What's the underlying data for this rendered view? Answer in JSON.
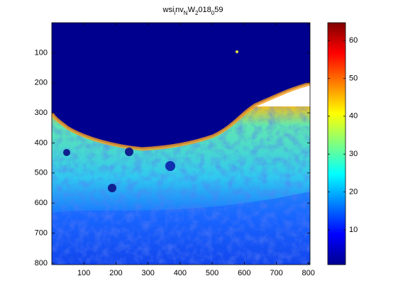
{
  "chart_data": {
    "type": "heatmap",
    "title_parts": [
      {
        "text": "wsi"
      },
      {
        "text": "i",
        "sub": true
      },
      {
        "text": "nv"
      },
      {
        "text": "N",
        "sub": true
      },
      {
        "text": "W"
      },
      {
        "text": "2",
        "sub": true
      },
      {
        "text": "018"
      },
      {
        "text": "0",
        "sub": true
      },
      {
        "text": "59"
      }
    ],
    "xlim": [
      0,
      805
    ],
    "xticks": [
      100,
      200,
      300,
      400,
      500,
      600,
      700,
      800
    ],
    "ylim": [
      0,
      805
    ],
    "yticks": [
      100,
      200,
      300,
      400,
      500,
      600,
      700,
      800
    ],
    "y_reversed": true,
    "clim": [
      0.8,
      64.7
    ],
    "cticks": [
      10,
      20,
      30,
      40,
      50,
      60
    ],
    "colormap": "jet"
  }
}
